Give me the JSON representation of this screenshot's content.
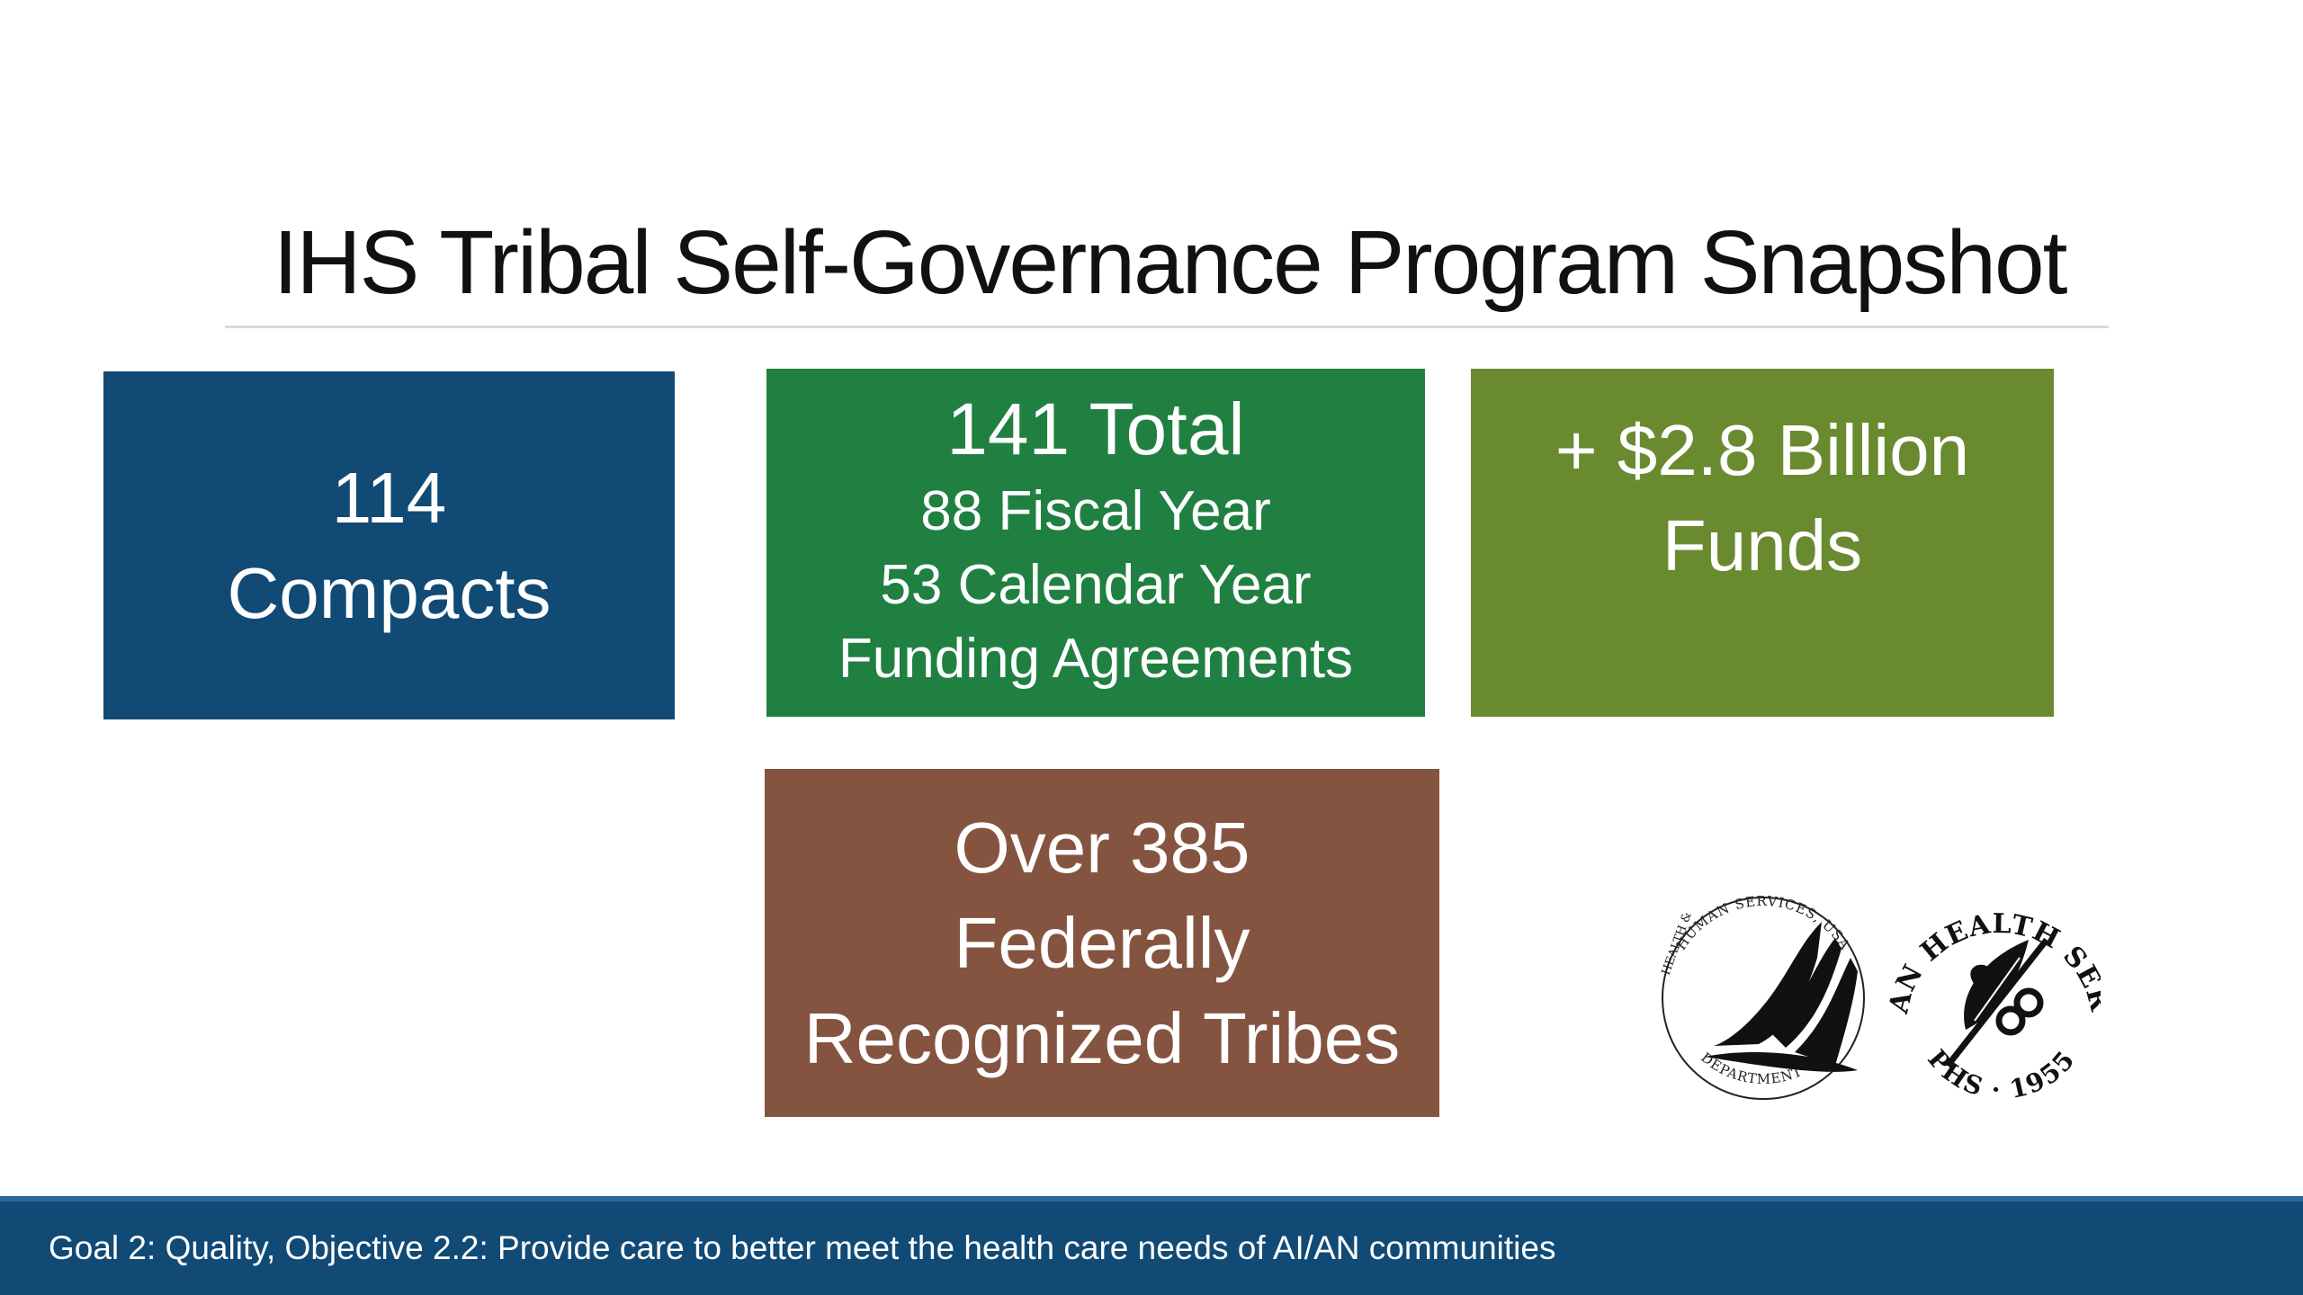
{
  "slide": {
    "title": "IHS Tribal Self-Governance Program Snapshot",
    "boxes": {
      "compacts": {
        "line1": "114",
        "line2": "Compacts",
        "color": "#124a76"
      },
      "agreements": {
        "line1": "141 Total",
        "line2": "88 Fiscal Year",
        "line3": "53 Calendar Year",
        "line4": "Funding Agreements",
        "color": "#208042"
      },
      "funds": {
        "line1": "+ $2.8 Billion",
        "line2": "Funds",
        "color": "#6a8a30"
      },
      "tribes": {
        "line1": "Over 385",
        "line2": "Federally",
        "line3": "Recognized Tribes",
        "color": "#855441"
      }
    },
    "logos": {
      "hhs": {
        "icon": "hhs-seal-icon",
        "text_top": "HUMAN SERVICES, USA",
        "text_left": "HEALTH &",
        "text_bottom": "DEPARTMENT OF"
      },
      "ihs": {
        "icon": "ihs-seal-icon",
        "text_top": "INDIAN HEALTH SERVICE",
        "text_bottom": "PHS · 1955"
      }
    },
    "footer": {
      "text": "Goal 2: Quality, Objective 2.2: Provide care to better meet the health care needs of AI/AN communities",
      "color": "#124a76"
    }
  }
}
